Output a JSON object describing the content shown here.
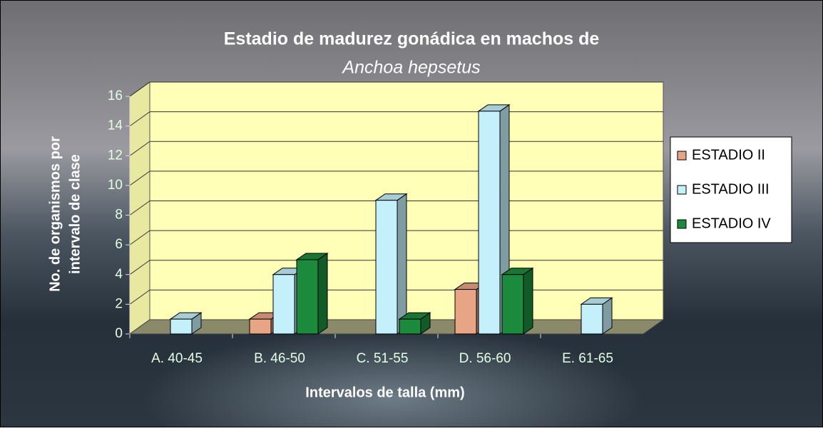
{
  "chart_data": {
    "type": "bar3d",
    "title": "Estadio de madurez gonádica en machos de",
    "subtitle": "Anchoa hepsetus",
    "x_label": "Intervalos de talla (mm)",
    "y_label": [
      "No. de organismos por",
      "intervalo de clase"
    ],
    "categories": [
      "A. 40-45",
      "B. 46-50",
      "C. 51-55",
      "D. 56-60",
      "E. 61-65"
    ],
    "series": [
      {
        "name": "ESTADIO II",
        "color": "#e8a585",
        "values": [
          0,
          1,
          0,
          3,
          0
        ]
      },
      {
        "name": "ESTADIO III",
        "color": "#c4f0fb",
        "values": [
          1,
          4,
          9,
          15,
          2
        ]
      },
      {
        "name": "ESTADIO IV",
        "color": "#1c8a3c",
        "values": [
          0,
          5,
          1,
          4,
          0
        ]
      }
    ],
    "ylim": [
      0,
      16
    ],
    "yticks": [
      0,
      2,
      4,
      6,
      8,
      10,
      12,
      14,
      16
    ],
    "grid": true,
    "legend": "right"
  }
}
